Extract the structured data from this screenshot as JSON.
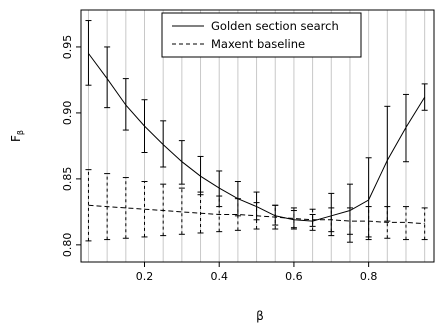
{
  "chart_data": {
    "type": "line",
    "title": "",
    "xlabel": "β",
    "ylabel": "F",
    "ylabel_subscript": "β",
    "xlim": [
      0.03,
      0.975
    ],
    "ylim": [
      0.787,
      0.978
    ],
    "x_ticks": [
      0.2,
      0.4,
      0.6,
      0.8
    ],
    "x_tick_labels": [
      "0.2",
      "0.4",
      "0.6",
      "0.8"
    ],
    "y_ticks": [
      0.8,
      0.85,
      0.9,
      0.95
    ],
    "y_tick_labels": [
      "0.80",
      "0.85",
      "0.90",
      "0.95"
    ],
    "vertical_gridlines": true,
    "gridline_color": "#c8c8c8",
    "legend_position": "top",
    "x": [
      0.05,
      0.1,
      0.15,
      0.2,
      0.25,
      0.3,
      0.35,
      0.4,
      0.45,
      0.5,
      0.55,
      0.6,
      0.65,
      0.7,
      0.75,
      0.8,
      0.85,
      0.9,
      0.95
    ],
    "series": [
      {
        "name": "Golden section search",
        "line_style": "solid",
        "values": [
          0.945,
          0.926,
          0.906,
          0.89,
          0.876,
          0.863,
          0.852,
          0.843,
          0.835,
          0.829,
          0.822,
          0.819,
          0.818,
          0.822,
          0.826,
          0.834,
          0.864,
          0.889,
          0.912
        ],
        "error_low": [
          0.921,
          0.904,
          0.887,
          0.87,
          0.859,
          0.846,
          0.838,
          0.829,
          0.822,
          0.819,
          0.815,
          0.813,
          0.814,
          0.807,
          0.802,
          0.804,
          0.818,
          0.863,
          0.902
        ],
        "error_high": [
          0.97,
          0.95,
          0.926,
          0.91,
          0.894,
          0.879,
          0.867,
          0.856,
          0.848,
          0.84,
          0.83,
          0.826,
          0.823,
          0.839,
          0.846,
          0.866,
          0.905,
          0.914,
          0.922
        ]
      },
      {
        "name": "Maxent baseline",
        "line_style": "dashed",
        "values": [
          0.83,
          0.829,
          0.828,
          0.827,
          0.826,
          0.825,
          0.824,
          0.823,
          0.823,
          0.822,
          0.821,
          0.82,
          0.819,
          0.819,
          0.818,
          0.818,
          0.817,
          0.817,
          0.816
        ],
        "error_low": [
          0.803,
          0.804,
          0.805,
          0.806,
          0.807,
          0.808,
          0.809,
          0.81,
          0.811,
          0.812,
          0.812,
          0.812,
          0.811,
          0.81,
          0.808,
          0.806,
          0.805,
          0.804,
          0.804
        ],
        "error_high": [
          0.857,
          0.854,
          0.851,
          0.848,
          0.846,
          0.843,
          0.84,
          0.837,
          0.835,
          0.832,
          0.83,
          0.828,
          0.827,
          0.828,
          0.828,
          0.829,
          0.829,
          0.829,
          0.828
        ]
      }
    ]
  }
}
